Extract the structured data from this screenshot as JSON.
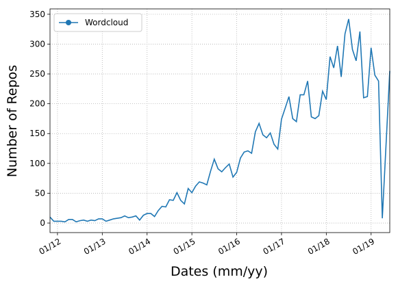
{
  "chart_data": {
    "type": "line",
    "xlabel": "Dates (mm/yy)",
    "ylabel": "Number of Repos",
    "x": [
      "11/11",
      "12/11",
      "01/12",
      "02/12",
      "03/12",
      "04/12",
      "05/12",
      "06/12",
      "07/12",
      "08/12",
      "09/12",
      "10/12",
      "11/12",
      "12/12",
      "01/13",
      "02/13",
      "03/13",
      "04/13",
      "05/13",
      "06/13",
      "07/13",
      "08/13",
      "09/13",
      "10/13",
      "11/13",
      "12/13",
      "01/14",
      "02/14",
      "03/14",
      "04/14",
      "05/14",
      "06/14",
      "07/14",
      "08/14",
      "09/14",
      "10/14",
      "11/14",
      "12/14",
      "01/15",
      "02/15",
      "03/15",
      "04/15",
      "05/15",
      "06/15",
      "07/15",
      "08/15",
      "09/15",
      "10/15",
      "11/15",
      "12/15",
      "01/16",
      "02/16",
      "03/16",
      "04/16",
      "05/16",
      "06/16",
      "07/16",
      "08/16",
      "09/16",
      "10/16",
      "11/16",
      "12/16",
      "01/17",
      "02/17",
      "03/17",
      "04/17",
      "05/17",
      "06/17",
      "07/17",
      "08/17",
      "09/17",
      "10/17",
      "11/17",
      "12/17",
      "01/18",
      "02/18",
      "03/18",
      "04/18",
      "05/18",
      "06/18",
      "07/18",
      "08/18",
      "09/18",
      "10/18",
      "11/18",
      "12/18",
      "01/19",
      "02/19",
      "03/19",
      "04/19",
      "06/19"
    ],
    "series": [
      {
        "name": "Wordcloud",
        "color": "#1f77b4",
        "values": [
          10,
          3,
          3,
          3,
          2,
          6,
          6,
          2,
          4,
          5,
          3,
          5,
          4,
          7,
          7,
          3,
          5,
          7,
          8,
          9,
          12,
          9,
          10,
          12,
          5,
          13,
          16,
          16,
          11,
          21,
          28,
          27,
          39,
          38,
          51,
          38,
          32,
          58,
          51,
          62,
          69,
          67,
          64,
          87,
          107,
          91,
          86,
          93,
          99,
          77,
          85,
          109,
          119,
          121,
          117,
          153,
          167,
          148,
          143,
          151,
          132,
          124,
          174,
          193,
          212,
          175,
          170,
          215,
          215,
          238,
          178,
          175,
          180,
          221,
          207,
          279,
          260,
          297,
          245,
          317,
          342,
          291,
          272,
          321,
          210,
          212,
          294,
          248,
          238,
          8,
          255
        ]
      }
    ],
    "xlim": [
      "11/11",
      "06/19"
    ],
    "xticks": [
      "01/12",
      "01/13",
      "01/14",
      "01/15",
      "01/16",
      "01/17",
      "01/18",
      "01/19"
    ],
    "ylim": [
      -16,
      359
    ],
    "yticks": [
      0,
      50,
      100,
      150,
      200,
      250,
      300,
      350
    ],
    "grid": true,
    "legend": "upper left"
  }
}
